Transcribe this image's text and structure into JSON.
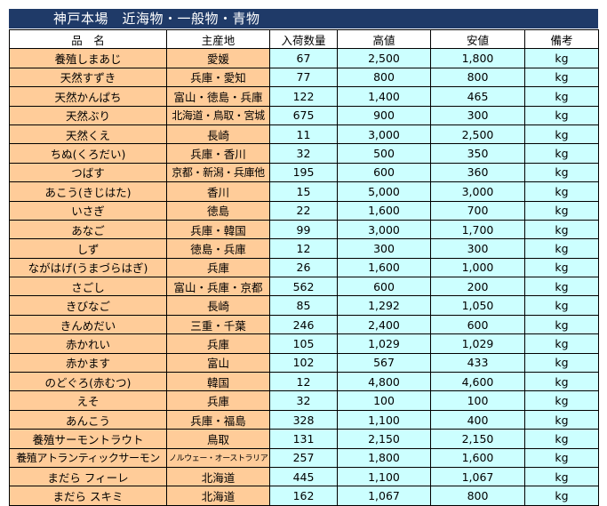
{
  "title": "神戸本場　近海物・一般物・青物",
  "headers": {
    "name": "品　名",
    "origin": "主産地",
    "qty": "入荷数量",
    "high": "高値",
    "low": "安値",
    "note": "備考"
  },
  "rows": [
    {
      "name": "養殖しまあじ",
      "origin": "愛媛",
      "qty": "67",
      "high": "2,500",
      "low": "1,800",
      "note": "kg"
    },
    {
      "name": "天然すずき",
      "origin": "兵庫・愛知",
      "qty": "77",
      "high": "800",
      "low": "800",
      "note": "kg"
    },
    {
      "name": "天然かんぱち",
      "origin": "富山・徳島・兵庫",
      "qty": "122",
      "high": "1,400",
      "low": "465",
      "note": "kg"
    },
    {
      "name": "天然ぶり",
      "origin": "北海道・鳥取・宮城",
      "qty": "675",
      "high": "900",
      "low": "300",
      "note": "kg"
    },
    {
      "name": "天然くえ",
      "origin": "長崎",
      "qty": "11",
      "high": "3,000",
      "low": "2,500",
      "note": "kg"
    },
    {
      "name": "ちぬ(くろだい)",
      "origin": "兵庫・香川",
      "qty": "32",
      "high": "500",
      "low": "350",
      "note": "kg"
    },
    {
      "name": "つばす",
      "origin": "京都・新潟・兵庫他",
      "qty": "195",
      "high": "600",
      "low": "360",
      "note": "kg"
    },
    {
      "name": "あこう(きじはた)",
      "origin": "香川",
      "qty": "15",
      "high": "5,000",
      "low": "3,000",
      "note": "kg"
    },
    {
      "name": "いさぎ",
      "origin": "徳島",
      "qty": "22",
      "high": "1,600",
      "low": "700",
      "note": "kg"
    },
    {
      "name": "あなご",
      "origin": "兵庫・韓国",
      "qty": "99",
      "high": "3,000",
      "low": "1,700",
      "note": "kg"
    },
    {
      "name": "しず",
      "origin": "徳島・兵庫",
      "qty": "12",
      "high": "300",
      "low": "300",
      "note": "kg"
    },
    {
      "name": "ながはげ(うまづらはぎ)",
      "origin": "兵庫",
      "qty": "26",
      "high": "1,600",
      "low": "1,000",
      "note": "kg"
    },
    {
      "name": "さごし",
      "origin": "富山・兵庫・京都",
      "qty": "562",
      "high": "600",
      "low": "200",
      "note": "kg"
    },
    {
      "name": "きびなご",
      "origin": "長崎",
      "qty": "85",
      "high": "1,292",
      "low": "1,050",
      "note": "kg"
    },
    {
      "name": "きんめだい",
      "origin": "三重・千葉",
      "qty": "246",
      "high": "2,400",
      "low": "600",
      "note": "kg"
    },
    {
      "name": "赤かれい",
      "origin": "兵庫",
      "qty": "105",
      "high": "1,029",
      "low": "1,029",
      "note": "kg"
    },
    {
      "name": "赤かます",
      "origin": "富山",
      "qty": "102",
      "high": "567",
      "low": "433",
      "note": "kg"
    },
    {
      "name": "のどぐろ(赤むつ)",
      "origin": "韓国",
      "qty": "12",
      "high": "4,800",
      "low": "4,600",
      "note": "kg"
    },
    {
      "name": "えそ",
      "origin": "兵庫",
      "qty": "32",
      "high": "100",
      "low": "100",
      "note": "kg"
    },
    {
      "name": "あんこう",
      "origin": "兵庫・福島",
      "qty": "328",
      "high": "1,100",
      "low": "400",
      "note": "kg"
    },
    {
      "name": "養殖サーモントラウト",
      "origin": "鳥取",
      "qty": "131",
      "high": "2,150",
      "low": "2,150",
      "note": "kg"
    },
    {
      "name": "養殖アトランティックサーモン",
      "origin": "ノルウェー・オーストラリア",
      "qty": "257",
      "high": "1,800",
      "low": "1,600",
      "note": "kg"
    },
    {
      "name": "まだら フィーレ",
      "origin": "北海道",
      "qty": "445",
      "high": "1,100",
      "low": "1,067",
      "note": "kg"
    },
    {
      "name": "まだら スキミ",
      "origin": "北海道",
      "qty": "162",
      "high": "1,067",
      "low": "800",
      "note": "kg"
    }
  ],
  "colors": {
    "title_bg": "#1f3a68",
    "name_bg": "#ffcc99",
    "value_bg": "#ccffff"
  }
}
